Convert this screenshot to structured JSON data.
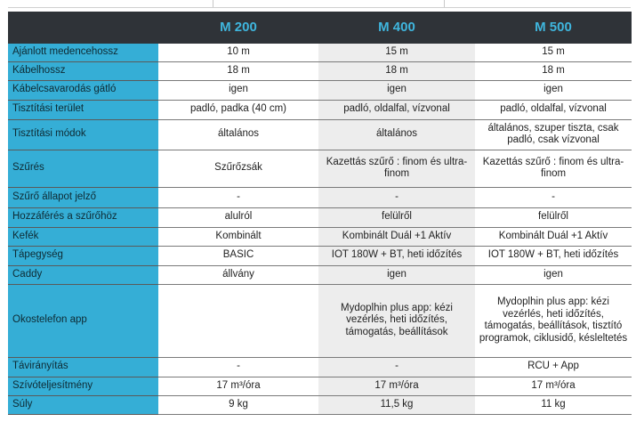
{
  "header": {
    "models": [
      "M 200",
      "M 400",
      "M 500"
    ]
  },
  "rows": [
    {
      "label": "Ajánlott medencehossz",
      "values": [
        "10 m",
        "15 m",
        "15 m"
      ]
    },
    {
      "label": "Kábelhossz",
      "values": [
        "18 m",
        "18 m",
        "18 m"
      ]
    },
    {
      "label": "Kábelcsavarodás gátló",
      "values": [
        "igen",
        "igen",
        "igen"
      ]
    },
    {
      "label": "Tisztítási terület",
      "values": [
        "padló, padka (40 cm)",
        "padló, oldalfal, vízvonal",
        "padló, oldalfal, vízvonal"
      ]
    },
    {
      "label": "Tisztítási módok",
      "values": [
        "általános",
        "általános",
        "általános, szuper tiszta, csak padló, csak vízvonal"
      ]
    },
    {
      "label": "Szűrés",
      "values": [
        "Szűrőzsák",
        "Kazettás szűrő : finom és ultra-finom",
        "Kazettás szűrő : finom és ultra-finom"
      ]
    },
    {
      "label": "Szűrő állapot jelző",
      "values": [
        "-",
        "-",
        "-"
      ]
    },
    {
      "label": "Hozzáférés a szűrőhöz",
      "values": [
        "alulról",
        "felülről",
        "felülről"
      ]
    },
    {
      "label": "Kefék",
      "values": [
        "Kombinált",
        "Kombinált Duál +1 Aktív",
        "Kombinált Duál +1 Aktív"
      ]
    },
    {
      "label": "Tápegység",
      "values": [
        "BASIC",
        "IOT 180W + BT, heti időzítés",
        "IOT 180W + BT, heti időzítés"
      ]
    },
    {
      "label": "Caddy",
      "values": [
        "állvány",
        "igen",
        "igen"
      ]
    },
    {
      "label": "Okostelefon app",
      "values": [
        "",
        "Mydoplhin plus app: kézi vezérlés, heti időzítés, támogatás, beállítások",
        "Mydoplhin plus app: kézi vezérlés, heti időzítés, támogatás, beállítások, tisztító programok, ciklusidő, késleltetés"
      ]
    },
    {
      "label": "Távirányítás",
      "values": [
        "-",
        "-",
        "RCU + App"
      ]
    },
    {
      "label": "Szívóteljesítmény",
      "values": [
        "17 m³/óra",
        "17 m³/óra",
        "17 m³/óra"
      ]
    },
    {
      "label": "Súly",
      "values": [
        "9 kg",
        "11,5 kg",
        "11 kg"
      ]
    }
  ]
}
